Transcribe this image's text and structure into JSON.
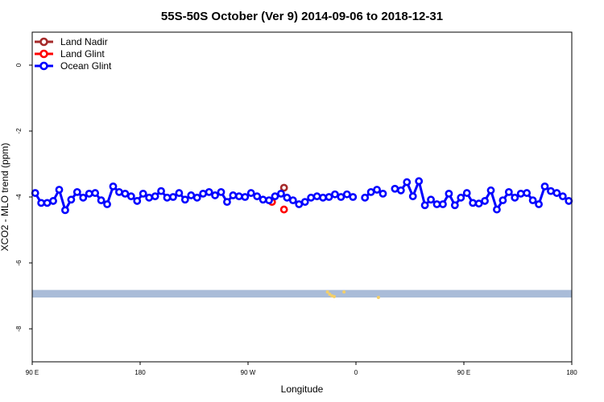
{
  "chart_data": {
    "type": "line",
    "title": "55S-50S October (Ver 9)   2014-09-06 to 2018-12-31",
    "xlabel": "Longitude",
    "ylabel": "XCO2 - MLO trend (ppm)",
    "xlim": [
      90,
      450
    ],
    "ylim": [
      -9,
      1
    ],
    "x_ticks": [
      {
        "value": 90,
        "label": "90 E"
      },
      {
        "value": 180,
        "label": "180"
      },
      {
        "value": 270,
        "label": "90 W"
      },
      {
        "value": 360,
        "label": "0"
      },
      {
        "value": 450,
        "label": "90 E"
      },
      {
        "value": 540,
        "label": "180"
      }
    ],
    "y_ticks": [
      {
        "value": 0,
        "label": "0"
      },
      {
        "value": -2,
        "label": "-2"
      },
      {
        "value": -4,
        "label": "-4"
      },
      {
        "value": -6,
        "label": "-6"
      },
      {
        "value": -8,
        "label": "-8"
      }
    ],
    "grid": false,
    "legend_position": "top-left",
    "series": [
      {
        "name": "Land Nadir",
        "color": "#a52a2a",
        "connected": false,
        "points": [
          [
            300.0,
            -3.72
          ]
        ]
      },
      {
        "name": "Land Glint",
        "color": "#ff0000",
        "connected": false,
        "points": [
          [
            290.0,
            -4.15
          ],
          [
            300.0,
            -4.38
          ]
        ]
      },
      {
        "name": "Ocean Glint",
        "color": "#0000ff",
        "connected": true,
        "points": [
          [
            92.5,
            -3.88
          ],
          [
            97.5,
            -4.18
          ],
          [
            102.5,
            -4.18
          ],
          [
            107.5,
            -4.12
          ],
          [
            112.5,
            -3.78
          ],
          [
            117.5,
            -4.4
          ],
          [
            122.5,
            -4.08
          ],
          [
            127.5,
            -3.85
          ],
          [
            132.5,
            -4.02
          ],
          [
            137.5,
            -3.9
          ],
          [
            142.5,
            -3.88
          ],
          [
            147.5,
            -4.1
          ],
          [
            152.5,
            -4.22
          ],
          [
            157.5,
            -3.68
          ],
          [
            162.5,
            -3.85
          ],
          [
            167.5,
            -3.9
          ],
          [
            172.5,
            -3.98
          ],
          [
            177.5,
            -4.12
          ],
          [
            182.5,
            -3.9
          ],
          [
            187.5,
            -4.02
          ],
          [
            192.5,
            -3.98
          ],
          [
            197.5,
            -3.82
          ],
          [
            202.5,
            -4.02
          ],
          [
            207.5,
            -4.0
          ],
          [
            212.5,
            -3.88
          ],
          [
            217.5,
            -4.08
          ],
          [
            222.5,
            -3.95
          ],
          [
            227.5,
            -4.02
          ],
          [
            232.5,
            -3.9
          ],
          [
            237.5,
            -3.85
          ],
          [
            242.5,
            -3.95
          ],
          [
            247.5,
            -3.85
          ],
          [
            252.5,
            -4.15
          ],
          [
            257.5,
            -3.95
          ],
          [
            262.5,
            -3.98
          ],
          [
            267.5,
            -4.0
          ],
          [
            272.5,
            -3.88
          ],
          [
            277.5,
            -3.98
          ],
          [
            282.5,
            -4.08
          ],
          [
            287.5,
            -4.1
          ],
          [
            292.5,
            -3.98
          ],
          [
            297.5,
            -3.9
          ],
          [
            302.5,
            -4.02
          ],
          [
            307.5,
            -4.1
          ],
          [
            312.5,
            -4.22
          ],
          [
            317.5,
            -4.15
          ],
          [
            322.5,
            -4.02
          ],
          [
            327.5,
            -3.98
          ],
          [
            332.5,
            -4.02
          ],
          [
            337.5,
            -4.0
          ],
          [
            342.5,
            -3.92
          ],
          [
            347.5,
            -4.0
          ],
          [
            352.5,
            -3.92
          ],
          [
            357.5,
            -4.0
          ],
          null,
          [
            367.5,
            -4.02
          ],
          [
            372.5,
            -3.85
          ],
          [
            377.5,
            -3.78
          ],
          [
            382.5,
            -3.9
          ],
          null,
          [
            392.5,
            -3.75
          ],
          [
            397.5,
            -3.8
          ],
          [
            402.5,
            -3.55
          ],
          [
            407.5,
            -3.98
          ],
          [
            412.5,
            -3.52
          ],
          [
            417.5,
            -4.25
          ],
          [
            422.5,
            -4.08
          ],
          [
            427.5,
            -4.22
          ],
          [
            432.5,
            -4.22
          ],
          [
            437.5,
            -3.9
          ],
          [
            442.5,
            -4.25
          ],
          [
            447.5,
            -4.02
          ],
          [
            452.5,
            -3.88
          ],
          [
            457.5,
            -4.18
          ],
          [
            462.5,
            -4.2
          ],
          [
            467.5,
            -4.12
          ],
          [
            472.5,
            -3.8
          ],
          [
            477.5,
            -4.38
          ],
          [
            482.5,
            -4.1
          ],
          [
            487.5,
            -3.85
          ],
          [
            492.5,
            -4.02
          ],
          [
            497.5,
            -3.9
          ],
          [
            502.5,
            -3.88
          ],
          [
            507.5,
            -4.1
          ],
          [
            512.5,
            -4.22
          ],
          [
            517.5,
            -3.68
          ],
          [
            522.5,
            -3.82
          ],
          [
            527.5,
            -3.88
          ],
          [
            532.5,
            -3.98
          ],
          [
            537.5,
            -4.12
          ]
        ]
      }
    ],
    "band": {
      "y_from": -7.05,
      "y_to": -6.82,
      "color": "#a9bcd8"
    },
    "band_overlay": {
      "color": "#f3cf6a",
      "points": [
        [
          287.0,
          -6.88
        ],
        [
          288.5,
          -6.95
        ],
        [
          290.0,
          -7.0
        ],
        [
          291.5,
          -7.02
        ],
        [
          298.0,
          -6.88
        ],
        [
          321.0,
          -7.05
        ]
      ]
    }
  }
}
